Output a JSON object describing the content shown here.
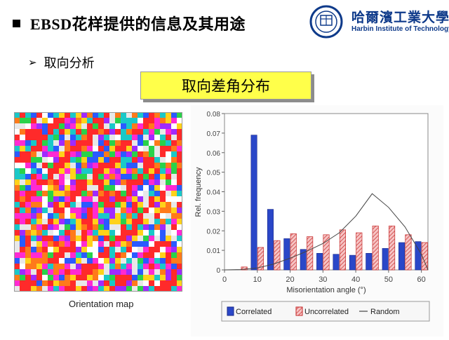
{
  "slide": {
    "title": "EBSD花样提供的信息及其用途",
    "subtitle": "取向分析",
    "box_label": "取向差角分布",
    "map_caption": "Orientation map"
  },
  "logo": {
    "name_cn": "哈爾濱工業大學",
    "name_en": "Harbin Institute of Technology"
  },
  "colors": {
    "correlated": "#2a47c8",
    "uncorrelated_fill": "#f6c4c4",
    "uncorrelated_stroke": "#c62828",
    "random_line": "#444444",
    "box_yellow": "#ffff4a"
  },
  "chart_data": {
    "type": "bar",
    "xlabel": "Misorientation angle (°)",
    "ylabel": "Rel. frequency",
    "xlim": [
      0,
      62
    ],
    "ylim": [
      0,
      0.08
    ],
    "x_ticks": [
      0,
      10,
      20,
      30,
      40,
      50,
      60
    ],
    "y_ticks": [
      0,
      0.01,
      0.02,
      0.03,
      0.04,
      0.05,
      0.06,
      0.07,
      0.08
    ],
    "grid": false,
    "legend_position": "bottom",
    "bin_centers": [
      5,
      10,
      15,
      20,
      25,
      30,
      35,
      40,
      45,
      50,
      55,
      60
    ],
    "series": [
      {
        "name": "Correlated",
        "kind": "bar",
        "values": [
          0.0,
          0.069,
          0.031,
          0.016,
          0.0105,
          0.0085,
          0.008,
          0.0075,
          0.0085,
          0.011,
          0.014,
          0.0145
        ]
      },
      {
        "name": "Uncorrelated",
        "kind": "bar",
        "values": [
          0.0015,
          0.0115,
          0.015,
          0.0185,
          0.017,
          0.018,
          0.0205,
          0.019,
          0.0225,
          0.0225,
          0.018,
          0.014
        ]
      },
      {
        "name": "Random",
        "kind": "line",
        "x": [
          0,
          5,
          10,
          15,
          20,
          25,
          30,
          35,
          40,
          45,
          50,
          55,
          60,
          62
        ],
        "values": [
          0,
          0.0002,
          0.001,
          0.003,
          0.006,
          0.0095,
          0.0135,
          0.019,
          0.0275,
          0.039,
          0.032,
          0.022,
          0.008,
          0
        ]
      }
    ]
  }
}
